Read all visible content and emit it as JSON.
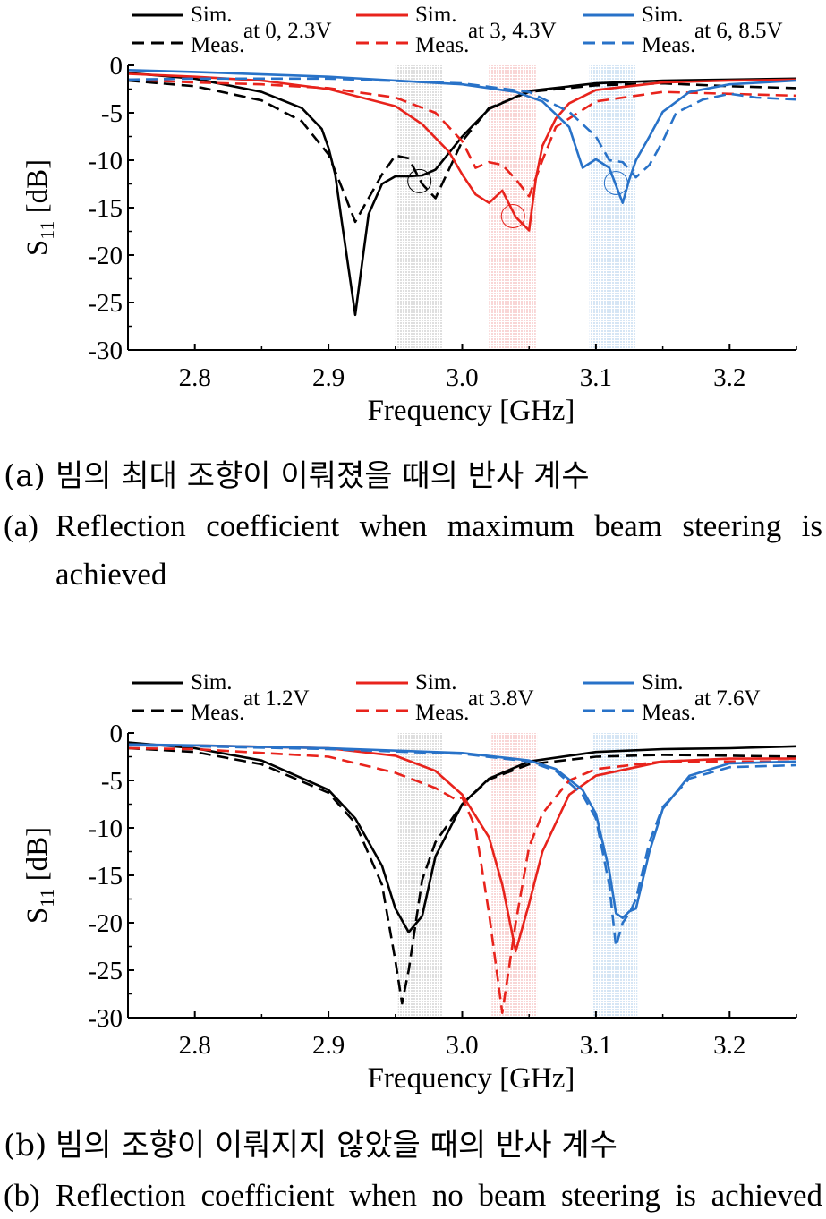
{
  "chart_data": [
    {
      "type": "line",
      "xlabel": "Frequency [GHz]",
      "ylabel": "S11 [dB]",
      "xlim": [
        2.75,
        3.25
      ],
      "ylim": [
        -30,
        0
      ],
      "xticks": [
        "2.8",
        "2.9",
        "3.0",
        "3.1",
        "3.2"
      ],
      "yticks": [
        "0",
        "-5",
        "-10",
        "-15",
        "-20",
        "-25",
        "-30"
      ],
      "legend": [
        {
          "sim_label": "Sim.",
          "meas_label": "Meas.",
          "condition": "at 0, 2.3V",
          "color": "#000000"
        },
        {
          "sim_label": "Sim.",
          "meas_label": "Meas.",
          "condition": "at 3, 4.3V",
          "color": "#e8231c"
        },
        {
          "sim_label": "Sim.",
          "meas_label": "Meas.",
          "condition": "at 6, 8.5V",
          "color": "#2872c8"
        }
      ],
      "bands": [
        {
          "x": [
            2.95,
            2.985
          ],
          "color": "#c8c8c8"
        },
        {
          "x": [
            3.02,
            3.055
          ],
          "color": "#f4b8b8"
        },
        {
          "x": [
            3.095,
            3.13
          ],
          "color": "#b8d4ee"
        }
      ],
      "markers": [
        {
          "x": 2.968,
          "y": -12.2,
          "color": "#000000"
        },
        {
          "x": 3.038,
          "y": -15.9,
          "color": "#e8231c"
        },
        {
          "x": 3.115,
          "y": -12.4,
          "color": "#2872c8"
        }
      ],
      "series": [
        {
          "name": "Sim. at 0, 2.3V",
          "color": "#000000",
          "dash": false,
          "x": [
            2.75,
            2.8,
            2.85,
            2.88,
            2.895,
            2.9,
            2.905,
            2.91,
            2.92,
            2.925,
            2.93,
            2.94,
            2.95,
            2.96,
            2.97,
            2.98,
            3.0,
            3.02,
            3.05,
            3.1,
            3.15,
            3.2,
            3.25
          ],
          "y": [
            -0.8,
            -1.4,
            -2.8,
            -4.5,
            -6.7,
            -8.7,
            -11.5,
            -16.5,
            -26.3,
            -21.0,
            -15.7,
            -12.5,
            -11.7,
            -11.7,
            -11.6,
            -11.0,
            -7.5,
            -4.6,
            -2.7,
            -1.9,
            -1.6,
            -1.5,
            -1.4
          ]
        },
        {
          "name": "Meas. at 0, 2.3V",
          "color": "#000000",
          "dash": true,
          "x": [
            2.75,
            2.8,
            2.85,
            2.88,
            2.9,
            2.91,
            2.92,
            2.93,
            2.94,
            2.95,
            2.96,
            2.97,
            2.98,
            3.0,
            3.02,
            3.05,
            3.1,
            3.15,
            3.2,
            3.25
          ],
          "y": [
            -1.6,
            -2.2,
            -3.7,
            -5.9,
            -9.4,
            -12.9,
            -16.5,
            -14.0,
            -11.5,
            -9.5,
            -9.8,
            -12.5,
            -14.0,
            -8.0,
            -4.5,
            -2.8,
            -2.1,
            -1.9,
            -2.2,
            -2.4
          ]
        },
        {
          "name": "Sim. at 3, 4.3V",
          "color": "#e8231c",
          "dash": false,
          "x": [
            2.75,
            2.8,
            2.85,
            2.9,
            2.95,
            2.97,
            2.99,
            3.0,
            3.01,
            3.02,
            3.03,
            3.04,
            3.05,
            3.055,
            3.06,
            3.07,
            3.08,
            3.1,
            3.15,
            3.2,
            3.25
          ],
          "y": [
            -0.9,
            -1.2,
            -1.6,
            -2.5,
            -4.3,
            -6.2,
            -9.1,
            -11.5,
            -13.6,
            -14.5,
            -13.2,
            -16.0,
            -17.4,
            -12.0,
            -8.5,
            -5.6,
            -4.0,
            -2.6,
            -1.8,
            -1.6,
            -1.5
          ]
        },
        {
          "name": "Meas. at 3, 4.3V",
          "color": "#e8231c",
          "dash": true,
          "x": [
            2.75,
            2.8,
            2.85,
            2.9,
            2.95,
            2.98,
            3.0,
            3.01,
            3.02,
            3.03,
            3.04,
            3.05,
            3.06,
            3.07,
            3.1,
            3.15,
            3.2,
            3.25
          ],
          "y": [
            -1.5,
            -1.8,
            -2.0,
            -2.4,
            -3.4,
            -5.0,
            -8.0,
            -10.8,
            -10.2,
            -10.5,
            -12.0,
            -13.8,
            -10.0,
            -6.5,
            -3.8,
            -2.8,
            -3.0,
            -3.2
          ]
        },
        {
          "name": "Sim. at 6, 8.5V",
          "color": "#2872c8",
          "dash": false,
          "x": [
            2.75,
            2.8,
            2.9,
            3.0,
            3.04,
            3.06,
            3.08,
            3.09,
            3.1,
            3.11,
            3.12,
            3.125,
            3.13,
            3.14,
            3.15,
            3.17,
            3.2,
            3.25
          ],
          "y": [
            -0.5,
            -0.7,
            -1.2,
            -2.0,
            -2.8,
            -3.8,
            -6.5,
            -10.8,
            -9.9,
            -10.8,
            -14.5,
            -12.0,
            -10.0,
            -7.5,
            -4.9,
            -2.8,
            -2.0,
            -1.6
          ]
        },
        {
          "name": "Meas. at 6, 8.5V",
          "color": "#2872c8",
          "dash": true,
          "x": [
            2.75,
            2.8,
            2.9,
            3.0,
            3.05,
            3.08,
            3.1,
            3.11,
            3.12,
            3.13,
            3.14,
            3.15,
            3.16,
            3.18,
            3.2,
            3.22,
            3.25
          ],
          "y": [
            -1.5,
            -1.4,
            -1.4,
            -1.9,
            -2.8,
            -4.9,
            -7.5,
            -10.0,
            -10.2,
            -11.8,
            -10.5,
            -8.0,
            -5.0,
            -3.6,
            -3.0,
            -3.4,
            -3.6
          ]
        }
      ]
    },
    {
      "type": "line",
      "xlabel": "Frequency [GHz]",
      "ylabel": "S11 [dB]",
      "xlim": [
        2.75,
        3.25
      ],
      "ylim": [
        -30,
        0
      ],
      "xticks": [
        "2.8",
        "2.9",
        "3.0",
        "3.1",
        "3.2"
      ],
      "yticks": [
        "0",
        "-5",
        "-10",
        "-15",
        "-20",
        "-25",
        "-30"
      ],
      "legend": [
        {
          "sim_label": "Sim.",
          "meas_label": "Meas.",
          "condition": "at 1.2V",
          "color": "#000000"
        },
        {
          "sim_label": "Sim.",
          "meas_label": "Meas.",
          "condition": "at 3.8V",
          "color": "#e8231c"
        },
        {
          "sim_label": "Sim.",
          "meas_label": "Meas.",
          "condition": "at 7.6V",
          "color": "#2872c8"
        }
      ],
      "bands": [
        {
          "x": [
            2.952,
            2.985
          ],
          "color": "#c8c8c8"
        },
        {
          "x": [
            3.022,
            3.056
          ],
          "color": "#f4b8b8"
        },
        {
          "x": [
            3.098,
            3.131
          ],
          "color": "#b8d4ee"
        }
      ],
      "markers": [],
      "series": [
        {
          "name": "Sim. at 1.2V",
          "color": "#000000",
          "dash": false,
          "x": [
            2.75,
            2.8,
            2.85,
            2.9,
            2.92,
            2.94,
            2.95,
            2.96,
            2.97,
            2.98,
            3.0,
            3.02,
            3.05,
            3.1,
            3.15,
            3.2,
            3.25
          ],
          "y": [
            -1.0,
            -1.6,
            -2.9,
            -6.0,
            -9.0,
            -14.0,
            -18.5,
            -21.0,
            -19.3,
            -13.0,
            -7.5,
            -4.8,
            -3.0,
            -2.0,
            -1.7,
            -1.6,
            -1.4
          ]
        },
        {
          "name": "Meas. at 1.2V",
          "color": "#000000",
          "dash": true,
          "x": [
            2.75,
            2.8,
            2.85,
            2.9,
            2.92,
            2.94,
            2.95,
            2.955,
            2.96,
            2.97,
            2.98,
            3.0,
            3.02,
            3.05,
            3.1,
            3.15,
            3.2,
            3.25
          ],
          "y": [
            -1.6,
            -2.0,
            -3.3,
            -6.3,
            -9.5,
            -16.0,
            -24.0,
            -28.5,
            -25.0,
            -15.5,
            -11.5,
            -7.5,
            -4.9,
            -3.3,
            -2.5,
            -2.3,
            -2.4,
            -2.5
          ]
        },
        {
          "name": "Sim. at 3.8V",
          "color": "#e8231c",
          "dash": false,
          "x": [
            2.75,
            2.8,
            2.9,
            2.95,
            2.98,
            3.0,
            3.02,
            3.03,
            3.04,
            3.05,
            3.06,
            3.08,
            3.1,
            3.15,
            3.2,
            3.25
          ],
          "y": [
            -1.3,
            -1.3,
            -1.6,
            -2.4,
            -4.0,
            -6.5,
            -11.0,
            -16.0,
            -23.0,
            -18.0,
            -12.5,
            -6.5,
            -4.5,
            -3.0,
            -2.7,
            -2.7
          ]
        },
        {
          "name": "Meas. at 3.8V",
          "color": "#e8231c",
          "dash": true,
          "x": [
            2.75,
            2.8,
            2.9,
            2.95,
            2.98,
            2.995,
            3.0,
            3.01,
            3.02,
            3.03,
            3.04,
            3.05,
            3.06,
            3.08,
            3.1,
            3.15,
            3.2,
            3.25
          ],
          "y": [
            -1.6,
            -1.7,
            -2.5,
            -4.2,
            -5.8,
            -7.0,
            -6.8,
            -10.0,
            -19.0,
            -29.5,
            -20.0,
            -12.0,
            -8.5,
            -5.0,
            -3.8,
            -3.0,
            -3.0,
            -3.0
          ]
        },
        {
          "name": "Sim. at 7.6V",
          "color": "#2872c8",
          "dash": false,
          "x": [
            2.75,
            2.8,
            2.9,
            3.0,
            3.05,
            3.07,
            3.09,
            3.1,
            3.11,
            3.115,
            3.12,
            3.125,
            3.13,
            3.14,
            3.15,
            3.17,
            3.2,
            3.25
          ],
          "y": [
            -1.2,
            -1.3,
            -1.6,
            -2.1,
            -2.9,
            -3.8,
            -6.0,
            -8.5,
            -14.5,
            -19.0,
            -19.5,
            -18.8,
            -18.5,
            -12.5,
            -8.0,
            -4.5,
            -3.2,
            -3.0
          ]
        },
        {
          "name": "Meas. at 7.6V",
          "color": "#2872c8",
          "dash": true,
          "x": [
            2.75,
            2.8,
            2.9,
            3.0,
            3.05,
            3.07,
            3.09,
            3.1,
            3.11,
            3.115,
            3.12,
            3.125,
            3.13,
            3.14,
            3.15,
            3.17,
            3.2,
            3.25
          ],
          "y": [
            -1.3,
            -1.4,
            -1.7,
            -2.2,
            -3.0,
            -4.0,
            -6.5,
            -9.0,
            -16.0,
            -22.5,
            -20.0,
            -19.0,
            -17.5,
            -11.5,
            -7.8,
            -4.8,
            -3.6,
            -3.4
          ]
        }
      ]
    }
  ],
  "captions": [
    {
      "label": "(a)",
      "korean": "빔의 최대 조향이 이뤄졌을 때의 반사 계수",
      "english_line1": "Reflection coefficient when maximum beam steering is",
      "english_line2": "achieved"
    },
    {
      "label": "(b)",
      "korean": "빔의 조향이 이뤄지지 않았을 때의 반사 계수",
      "english_line1": "Reflection coefficient when no beam steering is achieved"
    }
  ]
}
